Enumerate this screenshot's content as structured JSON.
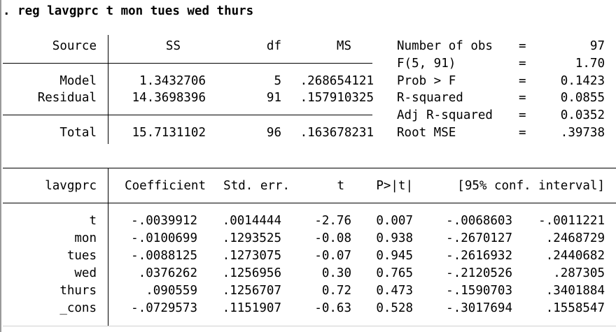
{
  "command": ". reg lavgprc t mon tues wed thurs",
  "anova": {
    "headers": {
      "source": "Source",
      "ss": "SS",
      "df": "df",
      "ms": "MS"
    },
    "rows": [
      {
        "source": "Model",
        "ss": "1.3432706",
        "df": "5",
        "ms": ".268654121"
      },
      {
        "source": "Residual",
        "ss": "14.3698396",
        "df": "91",
        "ms": ".157910325"
      }
    ],
    "total": {
      "source": "Total",
      "ss": "15.7131102",
      "df": "96",
      "ms": ".163678231"
    }
  },
  "stats": [
    {
      "label": "Number of obs",
      "eq": "=",
      "value": "97"
    },
    {
      "label": "F(5, 91)",
      "eq": "=",
      "value": "1.70"
    },
    {
      "label": "Prob > F",
      "eq": "=",
      "value": "0.1423"
    },
    {
      "label": "R-squared",
      "eq": "=",
      "value": "0.0855"
    },
    {
      "label": "Adj R-squared",
      "eq": "=",
      "value": "0.0352"
    },
    {
      "label": "Root MSE",
      "eq": "=",
      "value": ".39738"
    }
  ],
  "coef": {
    "headers": {
      "depvar": "lavgprc",
      "coefficient": "Coefficient",
      "se": "Std. err.",
      "t": "t",
      "p": "P>|t|",
      "ci": "[95% conf. interval]"
    },
    "rows": [
      {
        "var": "t",
        "coef": "-.0039912",
        "se": ".0014444",
        "t": "-2.76",
        "p": "0.007",
        "lo": "-.0068603",
        "hi": "-.0011221"
      },
      {
        "var": "mon",
        "coef": "-.0100699",
        "se": ".1293525",
        "t": "-0.08",
        "p": "0.938",
        "lo": "-.2670127",
        "hi": ".2468729"
      },
      {
        "var": "tues",
        "coef": "-.0088125",
        "se": ".1273075",
        "t": "-0.07",
        "p": "0.945",
        "lo": "-.2616932",
        "hi": ".2440682"
      },
      {
        "var": "wed",
        "coef": ".0376262",
        "se": ".1256956",
        "t": "0.30",
        "p": "0.765",
        "lo": "-.2120526",
        "hi": ".287305"
      },
      {
        "var": "thurs",
        "coef": ".090559",
        "se": ".1256707",
        "t": "0.72",
        "p": "0.473",
        "lo": "-.1590703",
        "hi": ".3401884"
      },
      {
        "var": "_cons",
        "coef": "-.0729573",
        "se": ".1151907",
        "t": "-0.63",
        "p": "0.528",
        "lo": "-.3017694",
        "hi": ".1558547"
      }
    ]
  }
}
